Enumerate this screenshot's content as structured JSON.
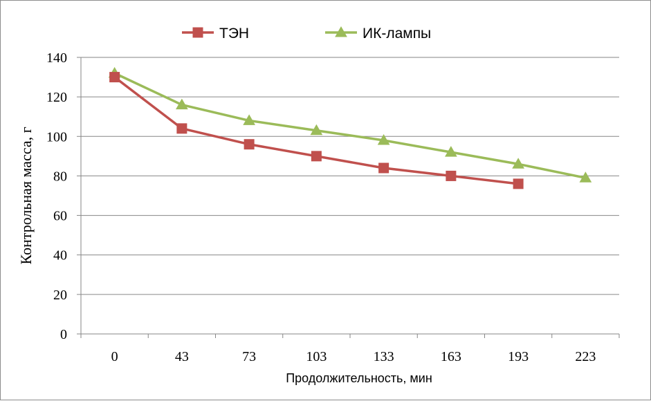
{
  "chart_data": {
    "type": "line",
    "title": "",
    "xlabel": "Продолжительность, мин",
    "ylabel": "Контрольная масса, г",
    "categories": [
      "0",
      "43",
      "73",
      "103",
      "133",
      "163",
      "193",
      "223"
    ],
    "ylim": [
      0,
      140
    ],
    "yticks": [
      0,
      20,
      40,
      60,
      80,
      100,
      120,
      140
    ],
    "grid": "horizontal",
    "legend_position": "top",
    "series": [
      {
        "name": "ТЭН",
        "color": "#c0504d",
        "marker": "square",
        "values": [
          130,
          104,
          96,
          90,
          84,
          80,
          76,
          null
        ]
      },
      {
        "name": "ИК-лампы",
        "color": "#9bbb59",
        "marker": "triangle",
        "values": [
          132,
          116,
          108,
          103,
          98,
          92,
          86,
          79
        ]
      }
    ]
  }
}
